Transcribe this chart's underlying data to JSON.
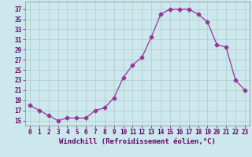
{
  "x": [
    0,
    1,
    2,
    3,
    4,
    5,
    6,
    7,
    8,
    9,
    10,
    11,
    12,
    13,
    14,
    15,
    16,
    17,
    18,
    19,
    20,
    21,
    22,
    23
  ],
  "y": [
    18,
    17,
    16,
    15,
    15.5,
    15.5,
    15.5,
    17,
    17.5,
    19.5,
    23.5,
    26,
    27.5,
    31.5,
    36,
    37,
    37,
    37,
    36,
    34.5,
    30,
    29.5,
    23,
    21
  ],
  "line_color": "#993399",
  "marker": "D",
  "marker_size": 2.5,
  "bg_color": "#cce8ec",
  "grid_color": "#aacccc",
  "xlabel": "Windchill (Refroidissement éolien,°C)",
  "ylabel_ticks": [
    15,
    17,
    19,
    21,
    23,
    25,
    27,
    29,
    31,
    33,
    35,
    37
  ],
  "xlim": [
    -0.5,
    23.5
  ],
  "ylim": [
    14,
    38.5
  ],
  "xticks": [
    0,
    1,
    2,
    3,
    4,
    5,
    6,
    7,
    8,
    9,
    10,
    11,
    12,
    13,
    14,
    15,
    16,
    17,
    18,
    19,
    20,
    21,
    22,
    23
  ],
  "tick_fontsize": 5.5,
  "xlabel_fontsize": 6.5
}
